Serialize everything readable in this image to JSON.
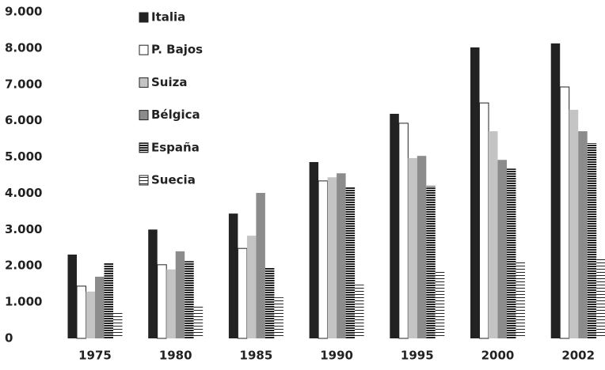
{
  "chart_data": {
    "type": "bar",
    "categories": [
      "1975",
      "1980",
      "1985",
      "1990",
      "1995",
      "2000",
      "2002"
    ],
    "series": [
      {
        "name": "Italia",
        "color": "#222222",
        "values": [
          2310,
          3000,
          3440,
          4860,
          6190,
          8020,
          8130
        ]
      },
      {
        "name": "P. Bajos",
        "color": "#ffffff",
        "values": [
          1440,
          2030,
          2480,
          4340,
          5930,
          6490,
          6930
        ]
      },
      {
        "name": "Suiza",
        "color": "#c4c4c4",
        "values": [
          1290,
          1900,
          2830,
          4440,
          4970,
          5710,
          6300
        ]
      },
      {
        "name": "Bélgica",
        "color": "#8c8c8c",
        "values": [
          1700,
          2400,
          4010,
          4550,
          5030,
          4920,
          5710
        ]
      },
      {
        "name": "España",
        "color": "#222222",
        "hatch": "horizontal-dense",
        "values": [
          2070,
          2130,
          1960,
          4180,
          4200,
          4680,
          5380
        ]
      },
      {
        "name": "Suecia",
        "color": "#222222",
        "hatch": "horizontal-sparse",
        "values": [
          760,
          890,
          1130,
          1480,
          1870,
          2110,
          2220
        ]
      }
    ],
    "ylim": [
      0,
      9000
    ],
    "yticks": [
      0,
      {
        "value": 1000,
        "label": "1.000"
      },
      {
        "value": 2000,
        "label": "2.000"
      },
      {
        "value": 3000,
        "label": "3.000"
      },
      {
        "value": 4000,
        "label": "4.000"
      },
      {
        "value": 5000,
        "label": "5.000"
      },
      {
        "value": 6000,
        "label": "6.000"
      },
      {
        "value": 7000,
        "label": "7.000"
      },
      {
        "value": 8000,
        "label": "8.000"
      },
      {
        "value": 9000,
        "label": "9.000"
      }
    ],
    "grid": false,
    "legend": "top-left"
  }
}
